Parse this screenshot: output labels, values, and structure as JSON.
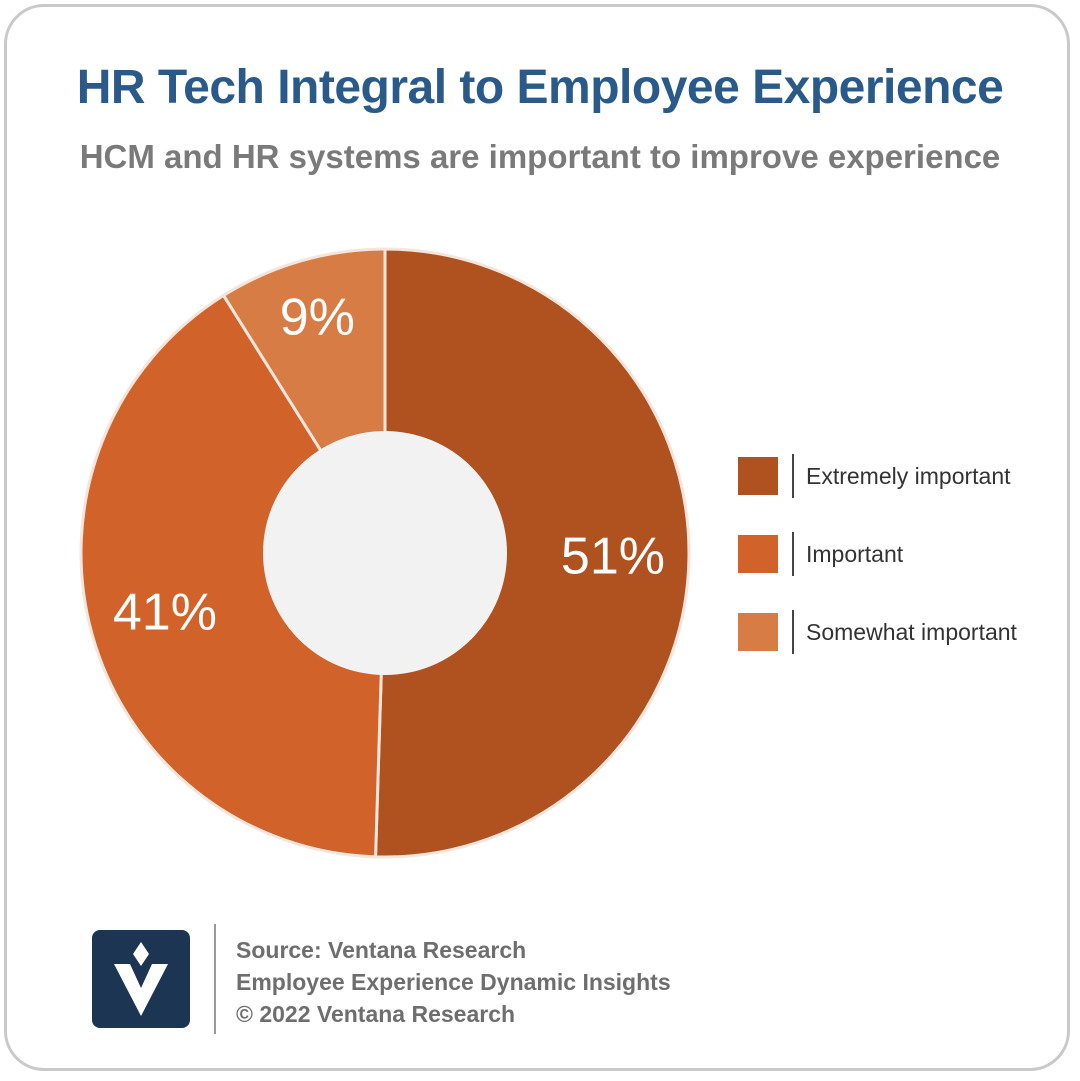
{
  "header": {
    "title": "HR Tech Integral to Employee Experience",
    "subtitle": "HCM and HR systems are important to improve experience"
  },
  "chart_data": {
    "type": "pie",
    "donut": true,
    "title": "HR Tech Integral to Employee Experience",
    "subtitle": "HCM and HR systems are important to improve experience",
    "categories": [
      "Extremely important",
      "Important",
      "Somewhat important"
    ],
    "values": [
      51,
      41,
      9
    ],
    "data_labels": [
      "51%",
      "41%",
      "9%"
    ],
    "colors": [
      "#b05220",
      "#d0622a",
      "#d87c45"
    ],
    "legend_placement": "right"
  },
  "footer": {
    "source": "Source: Ventana Research",
    "report": "Employee Experience Dynamic Insights",
    "copyright": "© 2022 Ventana Research",
    "logo_icon": "ventana-v-logo-icon",
    "logo_color": "#1c3552"
  }
}
